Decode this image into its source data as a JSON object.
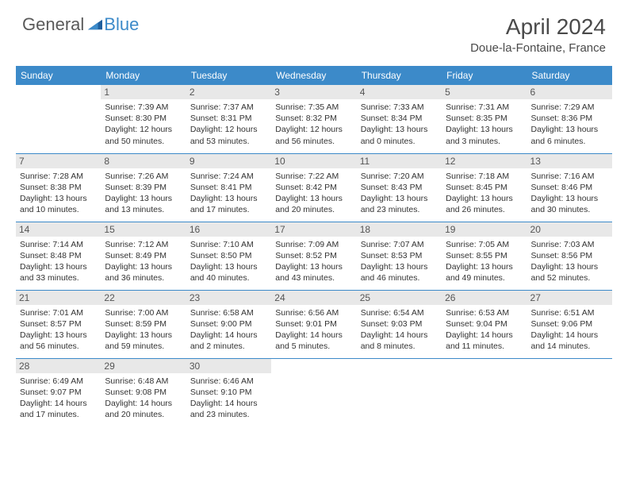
{
  "logo": {
    "part1": "General",
    "part2": "Blue"
  },
  "title": {
    "month": "April 2024",
    "location": "Doue-la-Fontaine, France"
  },
  "colors": {
    "header_bg": "#3c8ac9",
    "daynum_bg": "#e8e8e8",
    "border": "#3c8ac9"
  },
  "weekdays": [
    "Sunday",
    "Monday",
    "Tuesday",
    "Wednesday",
    "Thursday",
    "Friday",
    "Saturday"
  ],
  "weeks": [
    [
      null,
      {
        "n": "1",
        "sr": "Sunrise: 7:39 AM",
        "ss": "Sunset: 8:30 PM",
        "dl1": "Daylight: 12 hours",
        "dl2": "and 50 minutes."
      },
      {
        "n": "2",
        "sr": "Sunrise: 7:37 AM",
        "ss": "Sunset: 8:31 PM",
        "dl1": "Daylight: 12 hours",
        "dl2": "and 53 minutes."
      },
      {
        "n": "3",
        "sr": "Sunrise: 7:35 AM",
        "ss": "Sunset: 8:32 PM",
        "dl1": "Daylight: 12 hours",
        "dl2": "and 56 minutes."
      },
      {
        "n": "4",
        "sr": "Sunrise: 7:33 AM",
        "ss": "Sunset: 8:34 PM",
        "dl1": "Daylight: 13 hours",
        "dl2": "and 0 minutes."
      },
      {
        "n": "5",
        "sr": "Sunrise: 7:31 AM",
        "ss": "Sunset: 8:35 PM",
        "dl1": "Daylight: 13 hours",
        "dl2": "and 3 minutes."
      },
      {
        "n": "6",
        "sr": "Sunrise: 7:29 AM",
        "ss": "Sunset: 8:36 PM",
        "dl1": "Daylight: 13 hours",
        "dl2": "and 6 minutes."
      }
    ],
    [
      {
        "n": "7",
        "sr": "Sunrise: 7:28 AM",
        "ss": "Sunset: 8:38 PM",
        "dl1": "Daylight: 13 hours",
        "dl2": "and 10 minutes."
      },
      {
        "n": "8",
        "sr": "Sunrise: 7:26 AM",
        "ss": "Sunset: 8:39 PM",
        "dl1": "Daylight: 13 hours",
        "dl2": "and 13 minutes."
      },
      {
        "n": "9",
        "sr": "Sunrise: 7:24 AM",
        "ss": "Sunset: 8:41 PM",
        "dl1": "Daylight: 13 hours",
        "dl2": "and 17 minutes."
      },
      {
        "n": "10",
        "sr": "Sunrise: 7:22 AM",
        "ss": "Sunset: 8:42 PM",
        "dl1": "Daylight: 13 hours",
        "dl2": "and 20 minutes."
      },
      {
        "n": "11",
        "sr": "Sunrise: 7:20 AM",
        "ss": "Sunset: 8:43 PM",
        "dl1": "Daylight: 13 hours",
        "dl2": "and 23 minutes."
      },
      {
        "n": "12",
        "sr": "Sunrise: 7:18 AM",
        "ss": "Sunset: 8:45 PM",
        "dl1": "Daylight: 13 hours",
        "dl2": "and 26 minutes."
      },
      {
        "n": "13",
        "sr": "Sunrise: 7:16 AM",
        "ss": "Sunset: 8:46 PM",
        "dl1": "Daylight: 13 hours",
        "dl2": "and 30 minutes."
      }
    ],
    [
      {
        "n": "14",
        "sr": "Sunrise: 7:14 AM",
        "ss": "Sunset: 8:48 PM",
        "dl1": "Daylight: 13 hours",
        "dl2": "and 33 minutes."
      },
      {
        "n": "15",
        "sr": "Sunrise: 7:12 AM",
        "ss": "Sunset: 8:49 PM",
        "dl1": "Daylight: 13 hours",
        "dl2": "and 36 minutes."
      },
      {
        "n": "16",
        "sr": "Sunrise: 7:10 AM",
        "ss": "Sunset: 8:50 PM",
        "dl1": "Daylight: 13 hours",
        "dl2": "and 40 minutes."
      },
      {
        "n": "17",
        "sr": "Sunrise: 7:09 AM",
        "ss": "Sunset: 8:52 PM",
        "dl1": "Daylight: 13 hours",
        "dl2": "and 43 minutes."
      },
      {
        "n": "18",
        "sr": "Sunrise: 7:07 AM",
        "ss": "Sunset: 8:53 PM",
        "dl1": "Daylight: 13 hours",
        "dl2": "and 46 minutes."
      },
      {
        "n": "19",
        "sr": "Sunrise: 7:05 AM",
        "ss": "Sunset: 8:55 PM",
        "dl1": "Daylight: 13 hours",
        "dl2": "and 49 minutes."
      },
      {
        "n": "20",
        "sr": "Sunrise: 7:03 AM",
        "ss": "Sunset: 8:56 PM",
        "dl1": "Daylight: 13 hours",
        "dl2": "and 52 minutes."
      }
    ],
    [
      {
        "n": "21",
        "sr": "Sunrise: 7:01 AM",
        "ss": "Sunset: 8:57 PM",
        "dl1": "Daylight: 13 hours",
        "dl2": "and 56 minutes."
      },
      {
        "n": "22",
        "sr": "Sunrise: 7:00 AM",
        "ss": "Sunset: 8:59 PM",
        "dl1": "Daylight: 13 hours",
        "dl2": "and 59 minutes."
      },
      {
        "n": "23",
        "sr": "Sunrise: 6:58 AM",
        "ss": "Sunset: 9:00 PM",
        "dl1": "Daylight: 14 hours",
        "dl2": "and 2 minutes."
      },
      {
        "n": "24",
        "sr": "Sunrise: 6:56 AM",
        "ss": "Sunset: 9:01 PM",
        "dl1": "Daylight: 14 hours",
        "dl2": "and 5 minutes."
      },
      {
        "n": "25",
        "sr": "Sunrise: 6:54 AM",
        "ss": "Sunset: 9:03 PM",
        "dl1": "Daylight: 14 hours",
        "dl2": "and 8 minutes."
      },
      {
        "n": "26",
        "sr": "Sunrise: 6:53 AM",
        "ss": "Sunset: 9:04 PM",
        "dl1": "Daylight: 14 hours",
        "dl2": "and 11 minutes."
      },
      {
        "n": "27",
        "sr": "Sunrise: 6:51 AM",
        "ss": "Sunset: 9:06 PM",
        "dl1": "Daylight: 14 hours",
        "dl2": "and 14 minutes."
      }
    ],
    [
      {
        "n": "28",
        "sr": "Sunrise: 6:49 AM",
        "ss": "Sunset: 9:07 PM",
        "dl1": "Daylight: 14 hours",
        "dl2": "and 17 minutes."
      },
      {
        "n": "29",
        "sr": "Sunrise: 6:48 AM",
        "ss": "Sunset: 9:08 PM",
        "dl1": "Daylight: 14 hours",
        "dl2": "and 20 minutes."
      },
      {
        "n": "30",
        "sr": "Sunrise: 6:46 AM",
        "ss": "Sunset: 9:10 PM",
        "dl1": "Daylight: 14 hours",
        "dl2": "and 23 minutes."
      },
      null,
      null,
      null,
      null
    ]
  ]
}
